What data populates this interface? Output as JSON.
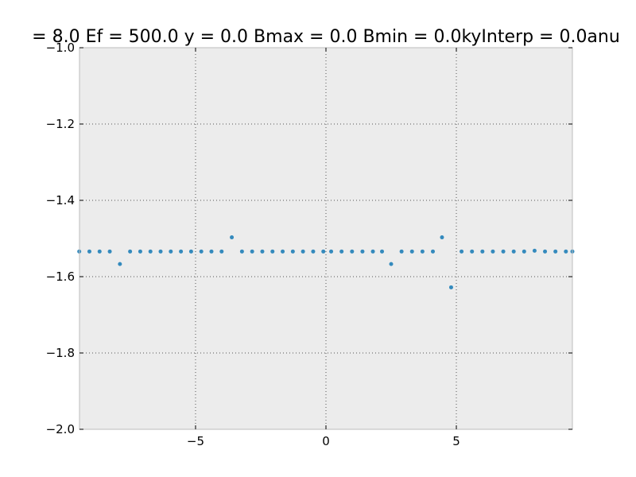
{
  "chart_data": {
    "type": "scatter",
    "title": "= 8.0 Ef = 500.0 y = 0.0 Bmax = 0.0 Bmin = 0.0kyInterp = 0.0anu",
    "xlabel": "",
    "ylabel": "",
    "xlim": [
      -9.45,
      9.45
    ],
    "ylim": [
      -2.0,
      -1.0
    ],
    "x_ticks": [
      -5,
      0,
      5
    ],
    "x_tick_labels": [
      "−5",
      "0",
      "5"
    ],
    "y_ticks": [
      -1.0,
      -1.2,
      -1.4,
      -1.6,
      -1.8,
      -2.0
    ],
    "y_tick_labels": [
      "−1.0",
      "−1.2",
      "−1.4",
      "−1.6",
      "−1.8",
      "−2.0"
    ],
    "grid": true,
    "legend": "none",
    "colors": {
      "marker": "#348abd",
      "plot_background": "#ececec",
      "grid": "#555555",
      "frame": "#bcbcbc"
    },
    "series": [
      {
        "points": [
          [
            -9.46,
            -1.534
          ],
          [
            -9.07,
            -1.534
          ],
          [
            -8.68,
            -1.534
          ],
          [
            -8.29,
            -1.534
          ],
          [
            -7.9,
            -1.567
          ],
          [
            -7.51,
            -1.534
          ],
          [
            -7.12,
            -1.534
          ],
          [
            -6.73,
            -1.534
          ],
          [
            -6.34,
            -1.534
          ],
          [
            -5.95,
            -1.534
          ],
          [
            -5.56,
            -1.534
          ],
          [
            -5.17,
            -1.534
          ],
          [
            -4.78,
            -1.534
          ],
          [
            -4.39,
            -1.534
          ],
          [
            -4.0,
            -1.534
          ],
          [
            -3.61,
            -1.497
          ],
          [
            -3.22,
            -1.534
          ],
          [
            -2.83,
            -1.534
          ],
          [
            -2.44,
            -1.534
          ],
          [
            -2.05,
            -1.534
          ],
          [
            -1.66,
            -1.534
          ],
          [
            -1.27,
            -1.534
          ],
          [
            -0.88,
            -1.534
          ],
          [
            -0.49,
            -1.534
          ],
          [
            -0.1,
            -1.534
          ],
          [
            0.2,
            -1.534
          ],
          [
            0.6,
            -1.534
          ],
          [
            1.0,
            -1.534
          ],
          [
            1.4,
            -1.534
          ],
          [
            1.8,
            -1.534
          ],
          [
            2.15,
            -1.534
          ],
          [
            2.5,
            -1.567
          ],
          [
            2.9,
            -1.534
          ],
          [
            3.3,
            -1.534
          ],
          [
            3.7,
            -1.534
          ],
          [
            4.1,
            -1.534
          ],
          [
            4.45,
            -1.497
          ],
          [
            4.8,
            -1.628
          ],
          [
            5.2,
            -1.534
          ],
          [
            5.6,
            -1.534
          ],
          [
            6.0,
            -1.534
          ],
          [
            6.4,
            -1.534
          ],
          [
            6.8,
            -1.534
          ],
          [
            7.2,
            -1.534
          ],
          [
            7.6,
            -1.534
          ],
          [
            8.0,
            -1.532
          ],
          [
            8.4,
            -1.534
          ],
          [
            8.8,
            -1.534
          ],
          [
            9.2,
            -1.534
          ],
          [
            9.45,
            -1.534
          ]
        ]
      }
    ]
  }
}
